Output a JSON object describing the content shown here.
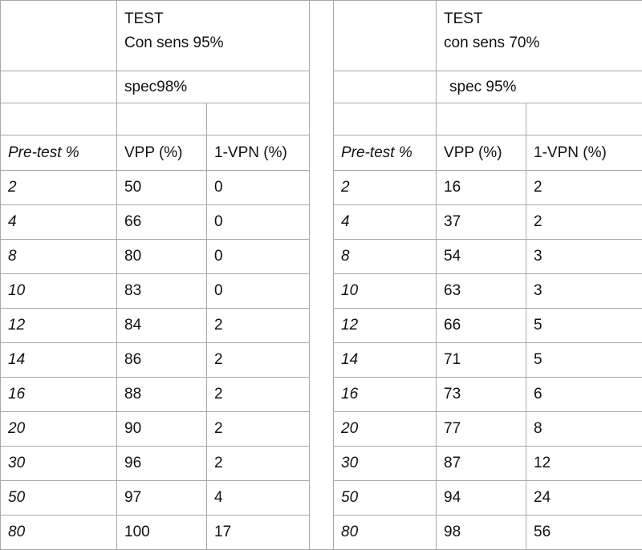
{
  "left": {
    "title": "TEST",
    "subtitle": "Con sens 95%",
    "spec": "spec98%",
    "headers": [
      "Pre-test %",
      "VPP (%)",
      "1-VPN (%)"
    ],
    "rows": [
      [
        2,
        50,
        0
      ],
      [
        4,
        66,
        0
      ],
      [
        8,
        80,
        0
      ],
      [
        10,
        83,
        0
      ],
      [
        12,
        84,
        2
      ],
      [
        14,
        86,
        2
      ],
      [
        16,
        88,
        2
      ],
      [
        20,
        90,
        2
      ],
      [
        30,
        96,
        2
      ],
      [
        50,
        97,
        4
      ],
      [
        80,
        100,
        17
      ]
    ]
  },
  "right": {
    "title": "TEST",
    "subtitle": "con sens 70%",
    "spec": "spec 95%",
    "headers": [
      "Pre-test %",
      "VPP (%)",
      "1-VPN (%)"
    ],
    "rows": [
      [
        2,
        16,
        2
      ],
      [
        4,
        37,
        2
      ],
      [
        8,
        54,
        3
      ],
      [
        10,
        63,
        3
      ],
      [
        12,
        66,
        5
      ],
      [
        14,
        71,
        5
      ],
      [
        16,
        73,
        6
      ],
      [
        20,
        77,
        8
      ],
      [
        30,
        87,
        12
      ],
      [
        50,
        94,
        24
      ],
      [
        80,
        98,
        56
      ]
    ]
  }
}
